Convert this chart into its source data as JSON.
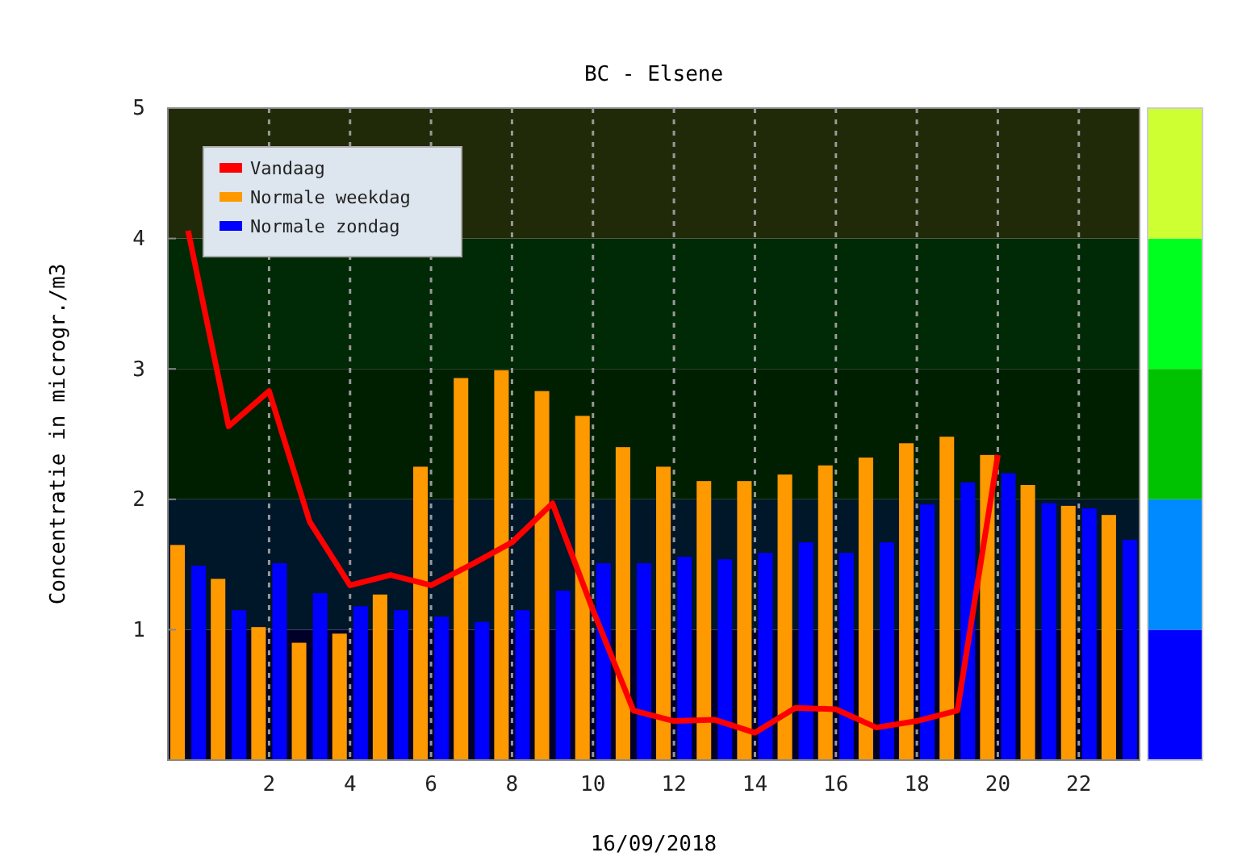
{
  "chart_data": {
    "type": "bar",
    "title": "BC - Elsene",
    "xlabel": "16/09/2018",
    "ylabel": "Concentratie in microgr./m3",
    "x": [
      0,
      1,
      2,
      3,
      4,
      5,
      6,
      7,
      8,
      9,
      10,
      11,
      12,
      13,
      14,
      15,
      16,
      17,
      18,
      19,
      20,
      21,
      22,
      23
    ],
    "xlim": [
      -0.5,
      23.5
    ],
    "xticks": [
      2,
      4,
      6,
      8,
      10,
      12,
      14,
      16,
      18,
      20,
      22
    ],
    "ylim": [
      0,
      5
    ],
    "yticks": [
      1,
      2,
      3,
      4,
      5
    ],
    "grid": "x",
    "legend": "top left",
    "series": [
      {
        "name": "Vandaag",
        "type": "line",
        "color": "#ff0000",
        "values": [
          4.06,
          2.56,
          2.83,
          1.83,
          1.34,
          1.42,
          1.34,
          1.5,
          1.67,
          1.97,
          1.15,
          0.38,
          0.3,
          0.31,
          0.21,
          0.4,
          0.39,
          0.25,
          0.3,
          0.38,
          2.34,
          null,
          null,
          null
        ]
      },
      {
        "name": "Normale weekdag",
        "color": "#ff9900",
        "values": [
          1.65,
          1.39,
          1.02,
          0.9,
          0.97,
          1.27,
          2.25,
          2.93,
          2.99,
          2.83,
          2.64,
          2.4,
          2.25,
          2.14,
          2.14,
          2.19,
          2.26,
          2.32,
          2.43,
          2.48,
          2.34,
          2.11,
          1.95,
          1.88
        ]
      },
      {
        "name": "Normale zondag",
        "color": "#0000ff",
        "values": [
          1.49,
          1.15,
          1.51,
          1.28,
          1.18,
          1.15,
          1.1,
          1.06,
          1.15,
          1.3,
          1.51,
          1.51,
          1.56,
          1.54,
          1.59,
          1.67,
          1.59,
          1.67,
          1.96,
          2.13,
          2.2,
          1.97,
          1.93,
          1.69
        ]
      }
    ],
    "bands": [
      {
        "axis": "y",
        "from": 0,
        "to": 1,
        "color": "#000029"
      },
      {
        "axis": "y",
        "from": 1,
        "to": 2,
        "color": "#001629"
      },
      {
        "axis": "y",
        "from": 2,
        "to": 3,
        "color": "#001f00"
      },
      {
        "axis": "y",
        "from": 3,
        "to": 4,
        "color": "#002905"
      },
      {
        "axis": "y",
        "from": 4,
        "to": 5,
        "color": "#212a08"
      }
    ]
  }
}
